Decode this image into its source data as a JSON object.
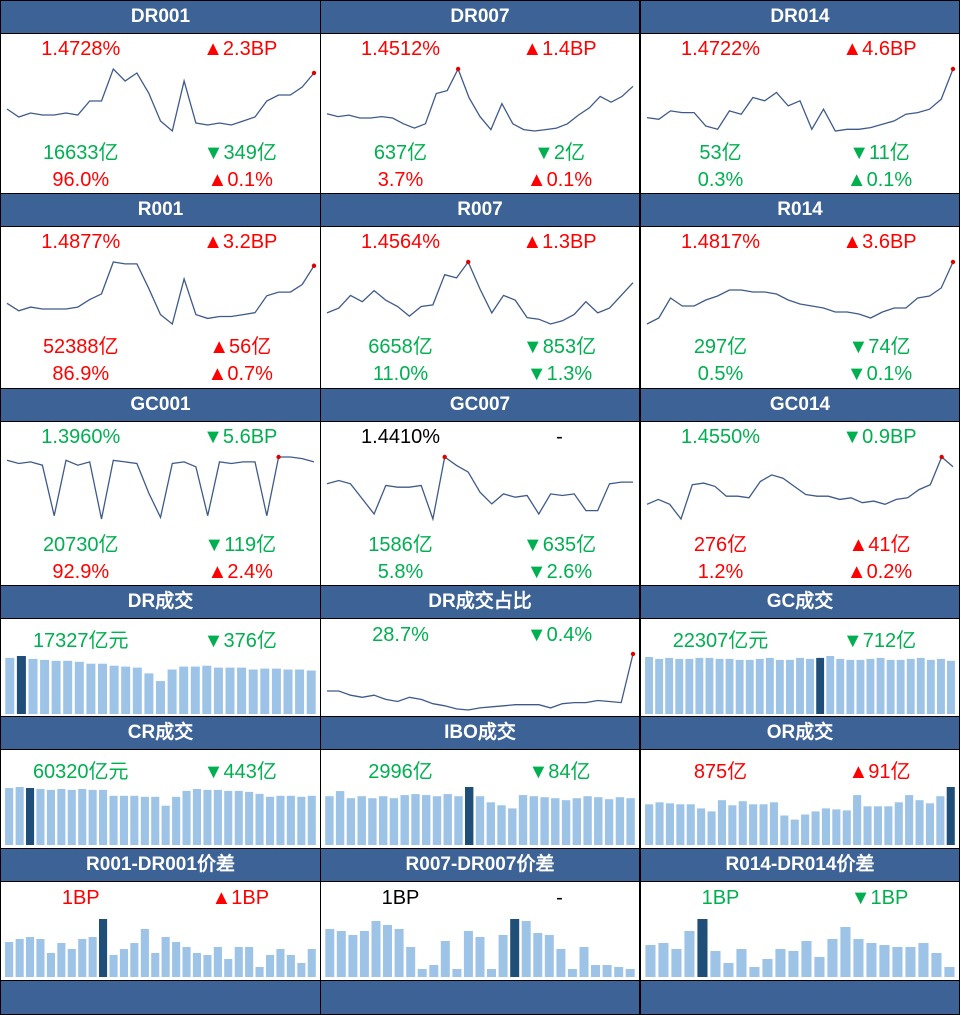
{
  "colors": {
    "header_bg": "#3c6296",
    "up": "#ff0000",
    "down": "#00b050",
    "line": "#3f5a8a",
    "bar": "#9dc3e6",
    "bar_highlight": "#1f4e79"
  },
  "panels": [
    {
      "title": "DR001",
      "rows": [
        [
          "1.4728%",
          "▲2.3BP",
          "red",
          "red"
        ],
        [
          "16633亿",
          "▼349亿",
          "green",
          "green"
        ],
        [
          "96.0%",
          "▲0.1%",
          "red",
          "red"
        ]
      ],
      "chart": {
        "type": "line",
        "values": [
          22,
          18,
          20,
          19,
          19,
          20,
          19,
          26,
          26,
          42,
          36,
          40,
          30,
          16,
          11,
          36,
          15,
          14,
          15,
          14,
          16,
          18,
          26,
          29,
          29,
          33,
          40
        ],
        "marker": "last"
      }
    },
    {
      "title": "DR007",
      "rows": [
        [
          "1.4512%",
          "▲1.4BP",
          "red",
          "red"
        ],
        [
          "637亿",
          "▼2亿",
          "green",
          "green"
        ],
        [
          "3.7%",
          "▲0.1%",
          "red",
          "red"
        ]
      ],
      "chart": {
        "type": "line",
        "values": [
          24,
          22,
          23,
          21,
          21,
          22,
          21,
          17,
          14,
          17,
          38,
          40,
          55,
          35,
          22,
          13,
          31,
          17,
          13,
          12,
          13,
          14,
          17,
          23,
          28,
          36,
          32,
          36,
          43
        ],
        "marker": "peak12"
      }
    },
    {
      "title": "DR014",
      "rows": [
        [
          "1.4722%",
          "▲4.6BP",
          "red",
          "red"
        ],
        [
          "53亿",
          "▼11亿",
          "green",
          "green"
        ],
        [
          "0.3%",
          "▲0.1%",
          "green",
          "green"
        ]
      ],
      "chart": {
        "type": "line",
        "values": [
          18,
          17,
          22,
          21,
          21,
          13,
          11,
          22,
          20,
          30,
          28,
          33,
          25,
          28,
          11,
          23,
          10,
          11,
          11,
          12,
          14,
          16,
          20,
          21,
          23,
          29,
          47
        ],
        "marker": "last"
      }
    },
    {
      "title": "R001",
      "rows": [
        [
          "1.4877%",
          "▲3.2BP",
          "red",
          "red"
        ],
        [
          "52388亿",
          "▲56亿",
          "red",
          "red"
        ],
        [
          "86.9%",
          "▲0.7%",
          "red",
          "red"
        ]
      ],
      "chart": {
        "type": "line",
        "values": [
          22,
          18,
          20,
          19,
          19,
          19,
          20,
          24,
          27,
          44,
          43,
          43,
          30,
          16,
          11,
          35,
          16,
          14,
          15,
          15,
          16,
          17,
          26,
          28,
          28,
          32,
          42
        ],
        "marker": "last"
      }
    },
    {
      "title": "R007",
      "rows": [
        [
          "1.4564%",
          "▲1.3BP",
          "red",
          "red"
        ],
        [
          "6658亿",
          "▼853亿",
          "green",
          "green"
        ],
        [
          "11.0%",
          "▼1.3%",
          "green",
          "green"
        ]
      ],
      "chart": {
        "type": "line",
        "values": [
          25,
          28,
          36,
          32,
          39,
          33,
          29,
          23,
          29,
          30,
          49,
          47,
          57,
          40,
          25,
          36,
          33,
          22,
          21,
          18,
          20,
          24,
          32,
          25,
          28,
          36,
          44
        ],
        "marker": "peak12"
      }
    },
    {
      "title": "R014",
      "rows": [
        [
          "1.4817%",
          "▲3.6BP",
          "red",
          "red"
        ],
        [
          "297亿",
          "▼74亿",
          "green",
          "green"
        ],
        [
          "0.5%",
          "▼0.1%",
          "green",
          "green"
        ]
      ],
      "chart": {
        "type": "line",
        "values": [
          18,
          21,
          31,
          27,
          27,
          30,
          32,
          35,
          35,
          34,
          34,
          33,
          30,
          28,
          27,
          26,
          24,
          24,
          23,
          21,
          24,
          26,
          26,
          31,
          32,
          36,
          49
        ],
        "marker": "last"
      }
    },
    {
      "title": "GC001",
      "rows": [
        [
          "1.3960%",
          "▼5.6BP",
          "green",
          "green"
        ],
        [
          "20730亿",
          "▼119亿",
          "green",
          "green"
        ],
        [
          "92.9%",
          "▲2.4%",
          "red",
          "red"
        ]
      ],
      "chart": {
        "type": "line",
        "values": [
          46,
          44,
          45,
          43,
          12,
          46,
          43,
          45,
          10,
          46,
          45,
          44,
          26,
          11,
          44,
          45,
          42,
          12,
          45,
          44,
          45,
          45,
          12,
          48,
          48,
          47,
          45
        ],
        "marker": "peak23"
      }
    },
    {
      "title": "GC007",
      "rows": [
        [
          "1.4410%",
          "-",
          "black",
          "black"
        ],
        [
          "1586亿",
          "▼635亿",
          "green",
          "green"
        ],
        [
          "5.8%",
          "▼2.6%",
          "green",
          "green"
        ]
      ],
      "chart": {
        "type": "line",
        "values": [
          33,
          35,
          33,
          24,
          15,
          32,
          31,
          31,
          32,
          12,
          49,
          44,
          40,
          28,
          21,
          27,
          25,
          26,
          15,
          27,
          26,
          27,
          17,
          17,
          33,
          34,
          34
        ],
        "marker": "peak10"
      }
    },
    {
      "title": "GC014",
      "rows": [
        [
          "1.4550%",
          "▼0.9BP",
          "green",
          "green"
        ],
        [
          "276亿",
          "▲41亿",
          "red",
          "red"
        ],
        [
          "1.2%",
          "▲0.2%",
          "red",
          "red"
        ]
      ],
      "chart": {
        "type": "line",
        "values": [
          18,
          21,
          18,
          9,
          30,
          31,
          29,
          23,
          23,
          22,
          32,
          36,
          34,
          29,
          24,
          23,
          23,
          21,
          22,
          19,
          20,
          18,
          21,
          22,
          27,
          30,
          47,
          41
        ],
        "marker": "peak26"
      }
    }
  ],
  "volume_panels": [
    {
      "title": "DR成交",
      "rows": [
        [
          "17327亿元",
          "▼376亿",
          "green",
          "green"
        ]
      ],
      "chart": {
        "type": "bar",
        "values": [
          58,
          60,
          57,
          56,
          55,
          55,
          54,
          52,
          52,
          50,
          49,
          48,
          42,
          34,
          46,
          49,
          49,
          50,
          48,
          48,
          48,
          46,
          47,
          47,
          46,
          46,
          45
        ],
        "highlight": 1
      }
    },
    {
      "title": "DR成交占比",
      "rows": [
        [
          "28.7%",
          "▼0.4%",
          "green",
          "green"
        ]
      ],
      "chart": {
        "type": "line",
        "values": [
          22,
          22,
          18,
          16,
          18,
          14,
          12,
          16,
          14,
          10,
          8,
          5,
          4,
          6,
          7,
          8,
          9,
          9,
          9,
          6,
          10,
          11,
          11,
          13,
          12,
          11,
          57
        ],
        "marker": "last"
      }
    },
    {
      "title": "GC成交",
      "rows": [
        [
          "22307亿元",
          "▼712亿",
          "green",
          "green"
        ]
      ],
      "chart": {
        "type": "bar",
        "values": [
          59,
          57,
          58,
          57,
          57,
          58,
          58,
          57,
          57,
          56,
          56,
          57,
          58,
          56,
          56,
          58,
          57,
          58,
          60,
          57,
          56,
          56,
          57,
          58,
          56,
          56,
          57,
          58,
          56,
          57,
          55
        ],
        "highlight": 17
      }
    },
    {
      "title": "CR成交",
      "rows": [
        [
          "60320亿元",
          "▼443亿",
          "green",
          "green"
        ]
      ],
      "chart": {
        "type": "bar",
        "values": [
          58,
          59,
          58,
          57,
          56,
          57,
          56,
          57,
          56,
          56,
          50,
          50,
          50,
          49,
          49,
          40,
          49,
          55,
          57,
          56,
          56,
          55,
          55,
          54,
          52,
          49,
          50,
          50,
          49,
          50
        ],
        "highlight": 2
      }
    },
    {
      "title": "IBO成交",
      "rows": [
        [
          "2996亿",
          "▼84亿",
          "green",
          "green"
        ]
      ],
      "chart": {
        "type": "bar",
        "values": [
          48,
          53,
          46,
          48,
          46,
          48,
          46,
          49,
          50,
          49,
          48,
          50,
          48,
          57,
          48,
          42,
          39,
          36,
          49,
          48,
          47,
          46,
          44,
          46,
          48,
          47,
          45,
          47,
          46
        ],
        "highlight": 13
      }
    },
    {
      "title": "OR成交",
      "rows": [
        [
          "875亿",
          "▲91亿",
          "red",
          "red"
        ]
      ],
      "chart": {
        "type": "bar",
        "values": [
          40,
          42,
          41,
          40,
          40,
          36,
          33,
          44,
          39,
          43,
          40,
          40,
          42,
          29,
          25,
          30,
          33,
          36,
          35,
          34,
          49,
          38,
          38,
          38,
          42,
          49,
          44,
          41,
          48,
          57
        ],
        "highlight": 29
      }
    }
  ],
  "spread_panels": [
    {
      "title": "R001-DR001价差",
      "rows": [
        [
          "1BP",
          "▲1BP",
          "red",
          "red"
        ]
      ],
      "chart": {
        "type": "bar",
        "values": [
          35,
          38,
          40,
          38,
          24,
          34,
          28,
          38,
          40,
          58,
          22,
          28,
          34,
          48,
          24,
          40,
          35,
          30,
          24,
          22,
          30,
          18,
          30,
          30,
          10,
          22,
          28,
          22,
          14,
          28
        ],
        "highlight": 9
      }
    },
    {
      "title": "R007-DR007价差",
      "rows": [
        [
          "1BP",
          "-",
          "black",
          "black"
        ]
      ],
      "chart": {
        "type": "bar",
        "values": [
          48,
          46,
          42,
          46,
          56,
          52,
          48,
          30,
          8,
          12,
          36,
          8,
          46,
          40,
          8,
          42,
          58,
          56,
          44,
          42,
          28,
          8,
          30,
          12,
          12,
          10,
          8
        ],
        "highlight": 16
      }
    },
    {
      "title": "R014-DR014价差",
      "rows": [
        [
          "1BP",
          "▼1BP",
          "green",
          "green"
        ]
      ],
      "chart": {
        "type": "bar",
        "values": [
          32,
          34,
          28,
          46,
          58,
          26,
          14,
          28,
          10,
          18,
          28,
          26,
          36,
          20,
          38,
          50,
          38,
          34,
          32,
          30,
          30,
          34,
          24,
          10
        ],
        "highlight": 4
      }
    }
  ]
}
